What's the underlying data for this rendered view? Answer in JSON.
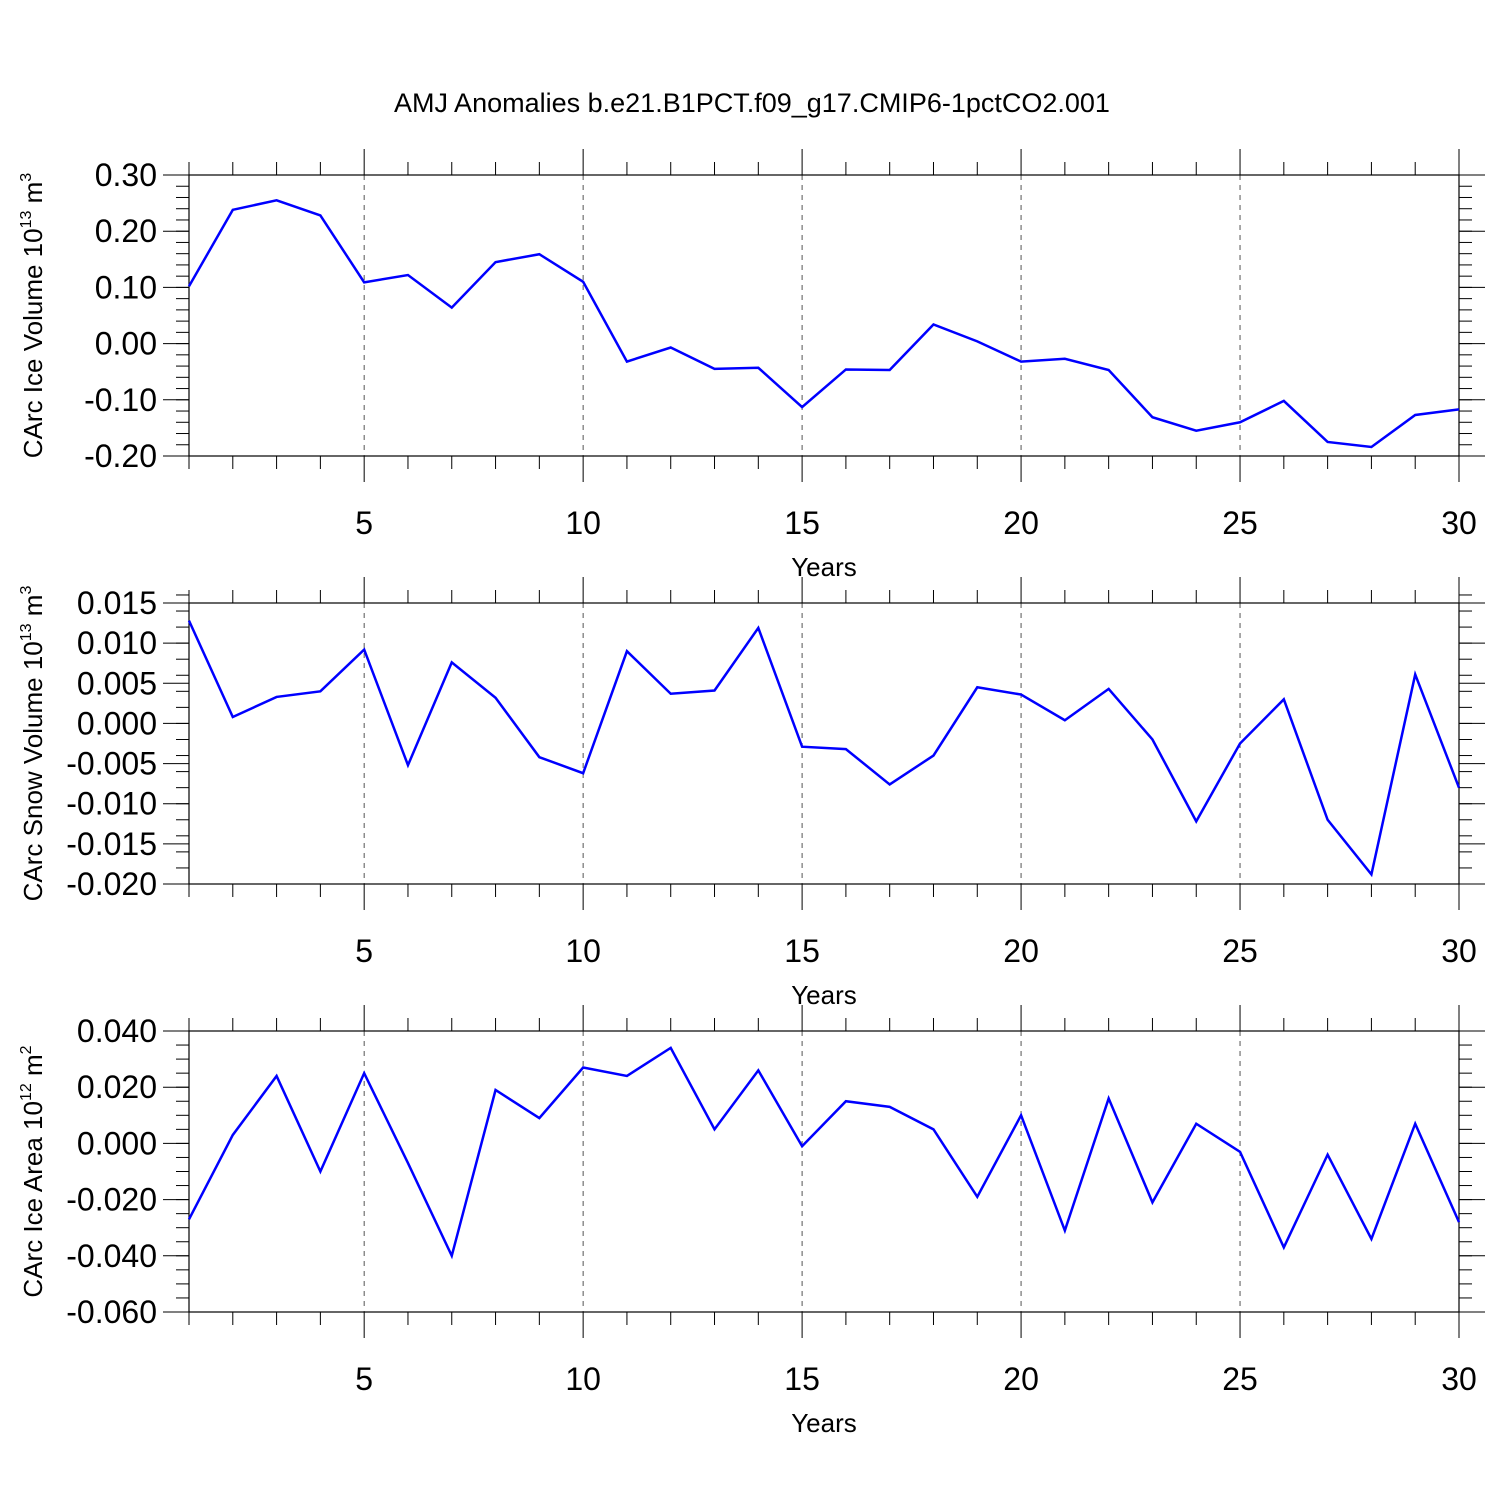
{
  "title": "AMJ Anomalies b.e21.B1PCT.f09_g17.CMIP6-1pctCO2.001",
  "line_color": "#0000ff",
  "chart_data": [
    {
      "type": "line",
      "title": "",
      "ylabel": {
        "main": "CArc Ice Volume 10",
        "sup": "13",
        "unit": " m",
        "unit_sup": "3"
      },
      "xlabel": "Years",
      "xlim": [
        1,
        30
      ],
      "ylim": [
        -0.2,
        0.3
      ],
      "x_ticks": [
        5,
        10,
        15,
        20,
        25,
        30
      ],
      "x_tick_labels": [
        "5",
        "10",
        "15",
        "20",
        "25",
        "30"
      ],
      "y_ticks": [
        -0.2,
        -0.1,
        0.0,
        0.1,
        0.2,
        0.3
      ],
      "y_tick_labels": [
        "-0.20",
        "-0.10",
        "0.00",
        "0.10",
        "0.20",
        "0.30"
      ],
      "grid": "vertical dashed at major x ticks",
      "series": [
        {
          "x": [
            1,
            2,
            3,
            4,
            5,
            6,
            7,
            8,
            9,
            10,
            11,
            12,
            13,
            14,
            15,
            16,
            17,
            18,
            19,
            20,
            21,
            22,
            23,
            24,
            25,
            26,
            27,
            28,
            29,
            30
          ],
          "values": [
            0.102,
            0.238,
            0.255,
            0.228,
            0.109,
            0.122,
            0.064,
            0.145,
            0.159,
            0.11,
            -0.032,
            -0.007,
            -0.045,
            -0.043,
            -0.113,
            -0.046,
            -0.047,
            0.034,
            0.004,
            -0.032,
            -0.027,
            -0.047,
            -0.131,
            -0.155,
            -0.14,
            -0.102,
            -0.175,
            -0.184,
            -0.127,
            -0.117
          ]
        }
      ]
    },
    {
      "type": "line",
      "title": "",
      "ylabel": {
        "main": "CArc Snow Volume 10",
        "sup": "13",
        "unit": " m",
        "unit_sup": "3"
      },
      "xlabel": "Years",
      "xlim": [
        1,
        30
      ],
      "ylim": [
        -0.02,
        0.015
      ],
      "x_ticks": [
        5,
        10,
        15,
        20,
        25,
        30
      ],
      "x_tick_labels": [
        "5",
        "10",
        "15",
        "20",
        "25",
        "30"
      ],
      "y_ticks": [
        -0.02,
        -0.015,
        -0.01,
        -0.005,
        0.0,
        0.005,
        0.01,
        0.015
      ],
      "y_tick_labels": [
        "-0.020",
        "-0.015",
        "-0.010",
        "-0.005",
        "0.000",
        "0.005",
        "0.010",
        "0.015"
      ],
      "grid": "vertical dashed at major x ticks",
      "series": [
        {
          "x": [
            1,
            2,
            3,
            4,
            5,
            6,
            7,
            8,
            9,
            10,
            11,
            12,
            13,
            14,
            15,
            16,
            17,
            18,
            19,
            20,
            21,
            22,
            23,
            24,
            25,
            26,
            27,
            28,
            29,
            30
          ],
          "values": [
            0.0128,
            0.0008,
            0.0033,
            0.004,
            0.0092,
            -0.0052,
            0.0076,
            0.0032,
            -0.0042,
            -0.0062,
            0.009,
            0.0037,
            0.0041,
            0.0119,
            -0.0029,
            -0.0032,
            -0.0076,
            -0.004,
            0.0045,
            0.0036,
            0.0004,
            0.0043,
            -0.002,
            -0.0122,
            -0.0025,
            0.003,
            -0.012,
            -0.0188,
            0.0061,
            -0.008
          ]
        }
      ]
    },
    {
      "type": "line",
      "title": "",
      "ylabel": {
        "main": "CArc Ice Area 10",
        "sup": "12",
        "unit": " m",
        "unit_sup": "2"
      },
      "xlabel": "Years",
      "xlim": [
        1,
        30
      ],
      "ylim": [
        -0.06,
        0.04
      ],
      "x_ticks": [
        5,
        10,
        15,
        20,
        25,
        30
      ],
      "x_tick_labels": [
        "5",
        "10",
        "15",
        "20",
        "25",
        "30"
      ],
      "y_ticks": [
        -0.06,
        -0.04,
        -0.02,
        0.0,
        0.02,
        0.04
      ],
      "y_tick_labels": [
        "-0.060",
        "-0.040",
        "-0.020",
        "0.000",
        "0.020",
        "0.040"
      ],
      "grid": "vertical dashed at major x ticks",
      "series": [
        {
          "x": [
            1,
            2,
            3,
            4,
            5,
            6,
            7,
            8,
            9,
            10,
            11,
            12,
            13,
            14,
            15,
            16,
            17,
            18,
            19,
            20,
            21,
            22,
            23,
            24,
            25,
            26,
            27,
            28,
            29,
            30
          ],
          "values": [
            -0.027,
            0.003,
            0.024,
            -0.01,
            0.025,
            -0.007,
            -0.04,
            0.019,
            0.009,
            0.027,
            0.024,
            0.034,
            0.005,
            0.026,
            -0.001,
            0.015,
            0.013,
            0.005,
            -0.019,
            0.01,
            -0.031,
            0.016,
            -0.021,
            0.007,
            -0.003,
            -0.037,
            -0.004,
            -0.034,
            0.007,
            -0.028
          ]
        }
      ]
    }
  ]
}
